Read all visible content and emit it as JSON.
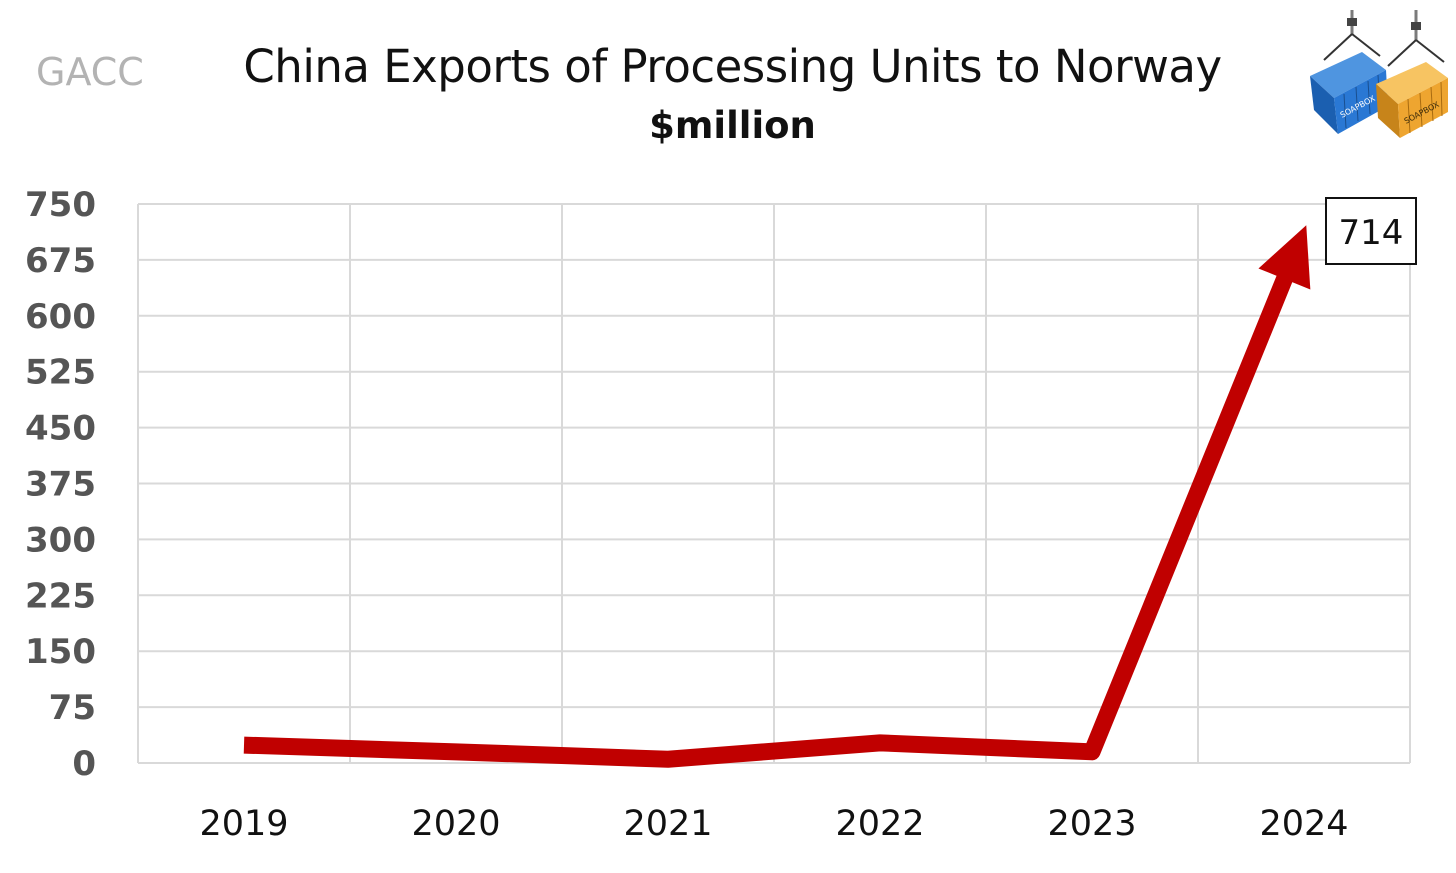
{
  "source_label": "GACC",
  "chart_data": {
    "type": "line",
    "title": "China Exports of Processing Units to Norway",
    "subtitle": "$million",
    "categories": [
      "2019",
      "2020",
      "2021",
      "2022",
      "2023",
      "2024"
    ],
    "series": [
      {
        "values": [
          24,
          15,
          5,
          27,
          15,
          714
        ]
      }
    ],
    "ylim": [
      0,
      750
    ],
    "yticks": [
      0,
      75,
      150,
      225,
      300,
      375,
      450,
      525,
      600,
      675,
      750
    ],
    "grid": true,
    "line_color": "#c00000",
    "end_arrow": true,
    "callout": {
      "category": "2024",
      "value_label": "714"
    }
  },
  "logo": {
    "icon": "shipping-containers-icon",
    "text": "SOAPBOX",
    "colors": [
      "#1f6fc6",
      "#f0a92a"
    ]
  }
}
